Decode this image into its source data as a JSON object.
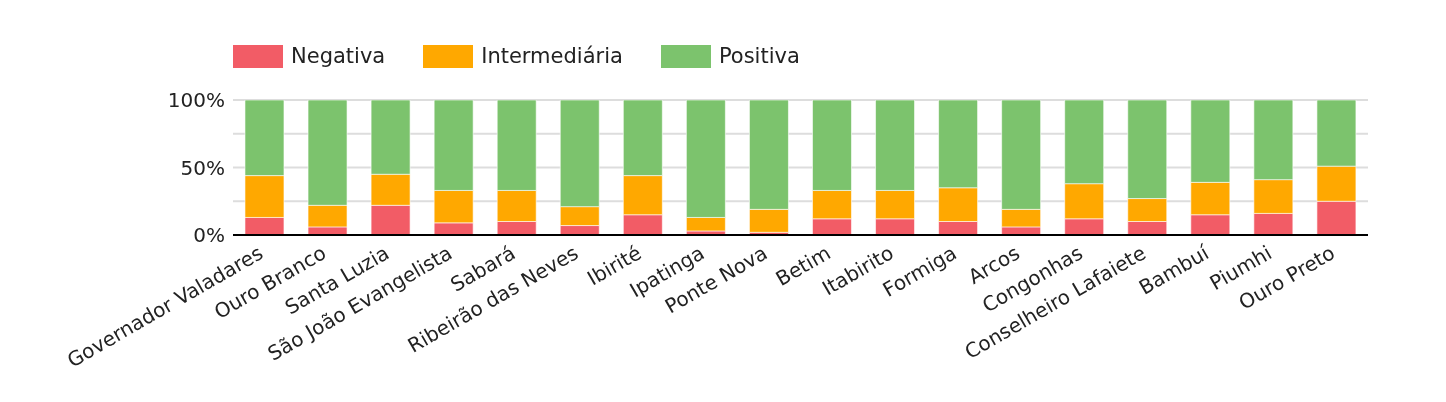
{
  "chart_data": {
    "type": "bar",
    "stacked": true,
    "categories": [
      "Governador Valadares",
      "Ouro Branco",
      "Santa Luzia",
      "São João Evangelista",
      "Sabará",
      "Ribeirão das Neves",
      "Ibirité",
      "Ipatinga",
      "Ponte Nova",
      "Betim",
      "Itabirito",
      "Formiga",
      "Arcos",
      "Congonhas",
      "Conselheiro Lafaiete",
      "Bambuí",
      "Piumhi",
      "Ouro Preto"
    ],
    "series": [
      {
        "name": "Negativa",
        "color": "#f25c66",
        "values": [
          13,
          6,
          22,
          9,
          10,
          7,
          15,
          3,
          2,
          12,
          12,
          10,
          6,
          12,
          10,
          15,
          16,
          25
        ]
      },
      {
        "name": "Intermediária",
        "color": "#ffa800",
        "values": [
          31,
          16,
          23,
          24,
          23,
          14,
          29,
          10,
          17,
          21,
          21,
          25,
          13,
          26,
          17,
          24,
          25,
          26
        ]
      },
      {
        "name": "Positiva",
        "color": "#7cc36d",
        "values": [
          56,
          78,
          55,
          67,
          67,
          79,
          56,
          87,
          81,
          67,
          67,
          65,
          81,
          62,
          73,
          61,
          59,
          49
        ]
      }
    ],
    "ylim": [
      0,
      100
    ],
    "yticks": [
      {
        "value": 0,
        "label": "0%"
      },
      {
        "value": 25,
        "label": null
      },
      {
        "value": 50,
        "label": "50%"
      },
      {
        "value": 75,
        "label": null
      },
      {
        "value": 100,
        "label": "100%"
      }
    ],
    "grid": "y",
    "legend": "top left"
  }
}
